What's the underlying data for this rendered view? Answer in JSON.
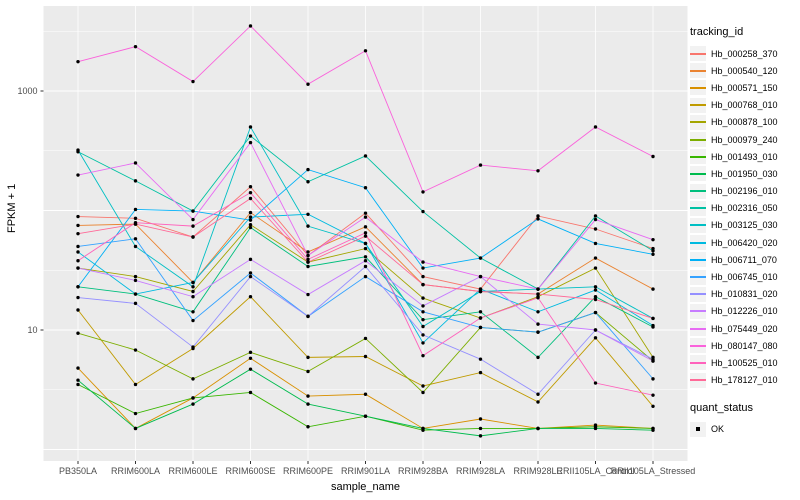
{
  "chart_data": {
    "type": "line",
    "x_axis": {
      "title": "sample_name",
      "categories": [
        "PB350LA",
        "RRIM600LA",
        "RRIM600LE",
        "RRIM600SE",
        "RRIM600PE",
        "RRIM901LA",
        "RRIM928BA",
        "RRIM928LA",
        "RRIM928LE",
        "RRII105LA_Control",
        "RRII105LA_Stressed"
      ]
    },
    "y_axis": {
      "title": "FPKM + 1",
      "scale": "log10",
      "ticks": [
        {
          "value": 1000,
          "label": "1000"
        },
        {
          "value": 10,
          "label": "10"
        }
      ],
      "range_approx": [
        0.8,
        5000
      ]
    },
    "legend": {
      "title": "tracking_id",
      "position": "right"
    },
    "quant_legend": {
      "title": "quant_status",
      "items": [
        {
          "label": "OK"
        }
      ]
    },
    "style": {
      "panel_bg": "#EBEBEB",
      "grid_color": "#FFFFFF",
      "point_color": "#000000",
      "tick_color": "#333333",
      "tick_text_color": "#4D4D4D",
      "key_bg": "#F2F2F2"
    },
    "series": [
      {
        "name": "Hb_000258_370",
        "color": "#F8766D",
        "values": [
          89,
          86,
          60,
          158,
          42,
          95,
          28,
          22,
          90,
          70,
          48
        ]
      },
      {
        "name": "Hb_000540_120",
        "color": "#EA8331",
        "values": [
          75,
          77,
          25,
          96,
          45,
          73,
          24,
          21,
          20,
          40,
          22
        ]
      },
      {
        "name": "Hb_000571_150",
        "color": "#D89000",
        "values": [
          4.8,
          1.5,
          2.7,
          5.8,
          2.8,
          2.9,
          1.5,
          1.8,
          1.5,
          1.6,
          1.5
        ]
      },
      {
        "name": "Hb_000768_010",
        "color": "#C09B00",
        "values": [
          14.7,
          3.5,
          7.0,
          19,
          5.9,
          6.0,
          3.4,
          4.4,
          2.5,
          8.6,
          2.3
        ]
      },
      {
        "name": "Hb_000878_100",
        "color": "#A3A500",
        "values": [
          33,
          28,
          21,
          76,
          37,
          48,
          18.5,
          12.6,
          19,
          33,
          5.9
        ]
      },
      {
        "name": "Hb_000979_240",
        "color": "#7CAE00",
        "values": [
          9.4,
          6.8,
          3.9,
          6.5,
          4.5,
          8.5,
          3.0,
          10.5,
          9.6,
          14,
          5.5
        ]
      },
      {
        "name": "Hb_001493_010",
        "color": "#39B600",
        "values": [
          3.5,
          2.0,
          2.7,
          3.0,
          1.55,
          1.9,
          1.45,
          1.5,
          1.5,
          1.55,
          1.5
        ]
      },
      {
        "name": "Hb_001950_030",
        "color": "#00BB4E",
        "values": [
          3.8,
          1.5,
          2.4,
          4.7,
          2.4,
          1.9,
          1.5,
          1.3,
          1.5,
          1.5,
          1.45
        ]
      },
      {
        "name": "Hb_002196_010",
        "color": "#00BF7D",
        "values": [
          23,
          20,
          14.2,
          72,
          34,
          41,
          12.2,
          14.2,
          5.9,
          19,
          10.6
        ]
      },
      {
        "name": "Hb_002316_050",
        "color": "#00C1A3",
        "values": [
          310,
          177,
          99,
          420,
          174,
          286,
          98,
          40,
          22,
          90,
          46
        ]
      },
      {
        "name": "Hb_003125_030",
        "color": "#00BFC4",
        "values": [
          320,
          50,
          23,
          500,
          74,
          53,
          10.7,
          21,
          22,
          23,
          12.5
        ]
      },
      {
        "name": "Hb_006420_020",
        "color": "#00BAE0",
        "values": [
          45,
          20,
          25,
          88,
          93,
          53,
          7.8,
          22,
          14.2,
          21.6,
          10.9
        ]
      },
      {
        "name": "Hb_006711_070",
        "color": "#00B0F6",
        "values": [
          23,
          102,
          99,
          83,
          220,
          155,
          33,
          40,
          85,
          53,
          43
        ]
      },
      {
        "name": "Hb_006745_010",
        "color": "#35A2FF",
        "values": [
          50,
          58,
          12,
          30,
          13,
          28,
          14.2,
          10.5,
          9.6,
          14,
          3.9
        ]
      },
      {
        "name": "Hb_010831_020",
        "color": "#9590FF",
        "values": [
          18.7,
          16.7,
          7.2,
          28,
          13,
          34,
          9.1,
          5.7,
          2.9,
          10,
          5.7
        ]
      },
      {
        "name": "Hb_012226_010",
        "color": "#C77CFF",
        "values": [
          33,
          26,
          19,
          39,
          19.8,
          38,
          15.9,
          28,
          11.2,
          10,
          5.5
        ]
      },
      {
        "name": "Hb_075449_020",
        "color": "#E76BF3",
        "values": [
          198,
          250,
          84,
          370,
          42,
          88,
          37,
          28,
          22,
          84,
          57
        ]
      },
      {
        "name": "Hb_080147_080",
        "color": "#FA62DB",
        "values": [
          1760,
          2350,
          1200,
          3500,
          1140,
          2170,
          143,
          240,
          215,
          500,
          283
        ]
      },
      {
        "name": "Hb_100525_010",
        "color": "#FF62BC",
        "values": [
          38,
          79,
          74,
          141,
          39,
          65,
          6.1,
          12.6,
          18.6,
          3.6,
          2.85
        ]
      },
      {
        "name": "Hb_178127_010",
        "color": "#FF6A98",
        "values": [
          64,
          77,
          60,
          126,
          37,
          61,
          24,
          21,
          20,
          18,
          12.5
        ]
      }
    ]
  }
}
